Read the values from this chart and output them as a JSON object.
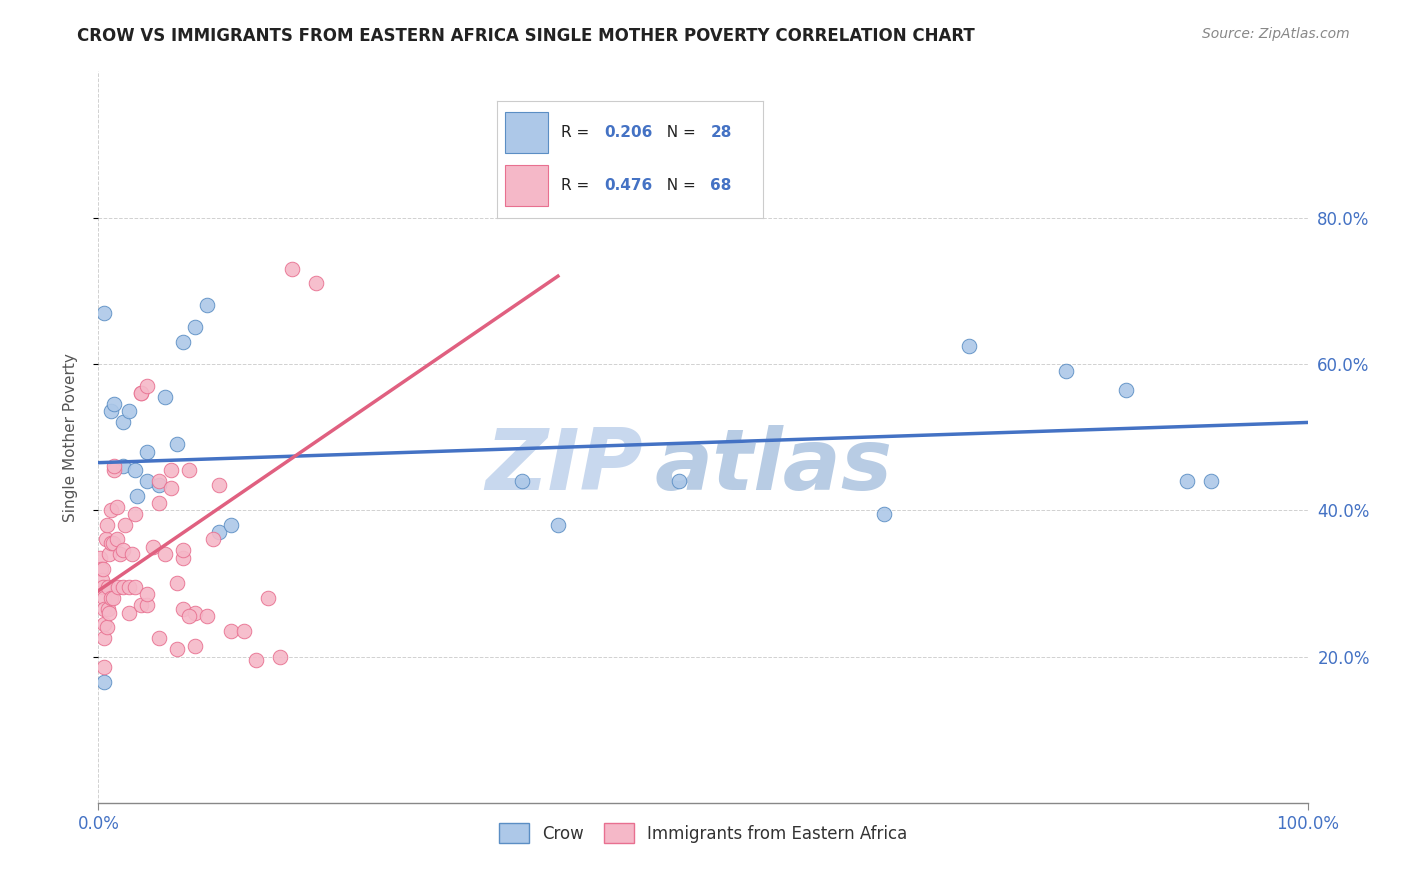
{
  "title": "CROW VS IMMIGRANTS FROM EASTERN AFRICA SINGLE MOTHER POVERTY CORRELATION CHART",
  "source": "Source: ZipAtlas.com",
  "ylabel": "Single Mother Poverty",
  "watermark_zip": "ZIP",
  "watermark_atlas": "atlas",
  "xlim": [
    0,
    1.0
  ],
  "ylim": [
    0,
    1.0
  ],
  "yticks": [
    0.2,
    0.4,
    0.6,
    0.8
  ],
  "ytick_labels": [
    "20.0%",
    "40.0%",
    "60.0%",
    "80.0%"
  ],
  "xtick_left_label": "0.0%",
  "xtick_right_label": "100.0%",
  "legend_label_blue": "Crow",
  "legend_label_pink": "Immigrants from Eastern Africa",
  "R_blue": "0.206",
  "N_blue": "28",
  "R_pink": "0.476",
  "N_pink": "68",
  "blue_scatter_color": "#adc8e8",
  "pink_scatter_color": "#f5b8c8",
  "blue_edge_color": "#5b8ec4",
  "pink_edge_color": "#e87090",
  "line_blue": "#4472c4",
  "line_pink": "#e06080",
  "title_color": "#222222",
  "source_color": "#888888",
  "stat_color": "#4472c4",
  "axis_tick_color": "#4472c4",
  "grid_color": "#cccccc",
  "watermark_zip_color": "#c8d8ee",
  "watermark_atlas_color": "#b8cce4",
  "blue_scatter_x": [
    0.005,
    0.01,
    0.013,
    0.02,
    0.02,
    0.025,
    0.03,
    0.032,
    0.04,
    0.04,
    0.05,
    0.055,
    0.065,
    0.07,
    0.08,
    0.09,
    0.1,
    0.11,
    0.35,
    0.38,
    0.48,
    0.65,
    0.72,
    0.8,
    0.85,
    0.9,
    0.92,
    0.005
  ],
  "blue_scatter_y": [
    0.165,
    0.535,
    0.545,
    0.52,
    0.46,
    0.535,
    0.455,
    0.42,
    0.48,
    0.44,
    0.435,
    0.555,
    0.49,
    0.63,
    0.65,
    0.68,
    0.37,
    0.38,
    0.44,
    0.38,
    0.44,
    0.395,
    0.625,
    0.59,
    0.565,
    0.44,
    0.44,
    0.67
  ],
  "pink_scatter_x": [
    0.001,
    0.002,
    0.003,
    0.004,
    0.004,
    0.005,
    0.005,
    0.005,
    0.005,
    0.005,
    0.006,
    0.007,
    0.007,
    0.008,
    0.008,
    0.009,
    0.009,
    0.01,
    0.01,
    0.01,
    0.012,
    0.012,
    0.013,
    0.013,
    0.015,
    0.015,
    0.016,
    0.018,
    0.02,
    0.02,
    0.022,
    0.025,
    0.025,
    0.028,
    0.03,
    0.03,
    0.035,
    0.035,
    0.04,
    0.04,
    0.045,
    0.05,
    0.05,
    0.055,
    0.06,
    0.065,
    0.07,
    0.07,
    0.075,
    0.08,
    0.09,
    0.095,
    0.1,
    0.11,
    0.12,
    0.13,
    0.14,
    0.15,
    0.16,
    0.18,
    0.035,
    0.04,
    0.05,
    0.06,
    0.065,
    0.07,
    0.075,
    0.08
  ],
  "pink_scatter_y": [
    0.335,
    0.32,
    0.305,
    0.32,
    0.295,
    0.28,
    0.265,
    0.245,
    0.225,
    0.185,
    0.36,
    0.24,
    0.38,
    0.265,
    0.295,
    0.26,
    0.34,
    0.28,
    0.355,
    0.4,
    0.28,
    0.355,
    0.455,
    0.46,
    0.36,
    0.405,
    0.295,
    0.34,
    0.295,
    0.345,
    0.38,
    0.295,
    0.26,
    0.34,
    0.295,
    0.395,
    0.27,
    0.56,
    0.27,
    0.285,
    0.35,
    0.225,
    0.41,
    0.34,
    0.455,
    0.21,
    0.265,
    0.335,
    0.455,
    0.26,
    0.255,
    0.36,
    0.435,
    0.235,
    0.235,
    0.195,
    0.28,
    0.2,
    0.73,
    0.71,
    0.56,
    0.57,
    0.44,
    0.43,
    0.3,
    0.345,
    0.255,
    0.215
  ],
  "blue_trendline_x": [
    0.0,
    1.0
  ],
  "blue_trendline_y": [
    0.465,
    0.52
  ],
  "pink_trendline_x": [
    0.0,
    0.38
  ],
  "pink_trendline_y": [
    0.29,
    0.72
  ]
}
